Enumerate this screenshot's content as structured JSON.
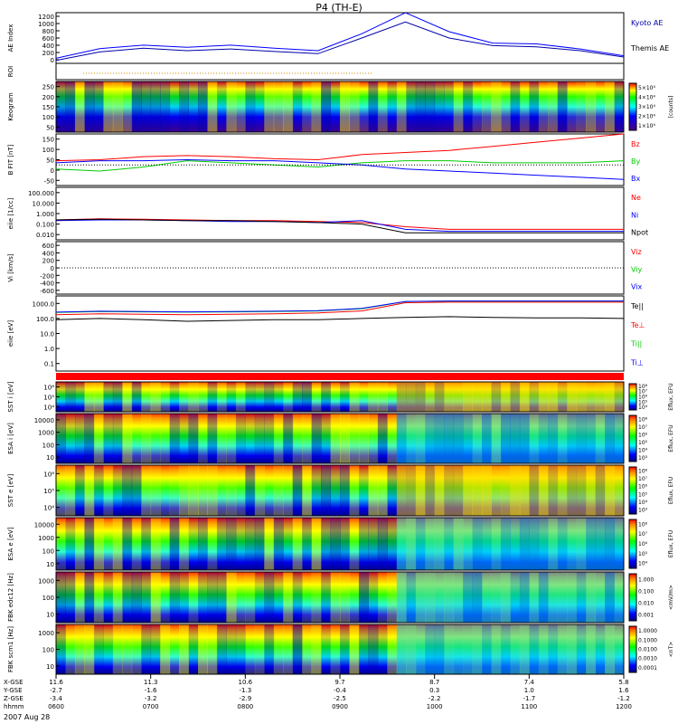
{
  "title": "P4 (TH-E)",
  "date_label": "2007 Aug 28",
  "ephemeris": {
    "row_labels": [
      "X-GSE",
      "Y-GSE",
      "Z-GSE",
      "hhmm"
    ],
    "columns": [
      {
        "x": "11.6",
        "y": "-2.7",
        "z": "-3.4",
        "t": "0600"
      },
      {
        "x": "11.3",
        "y": "-1.6",
        "z": "-3.2",
        "t": "0700"
      },
      {
        "x": "10.6",
        "y": "-1.3",
        "z": "-2.9",
        "t": "0800"
      },
      {
        "x": "9.7",
        "y": "-0.4",
        "z": "-2.5",
        "t": "0900"
      },
      {
        "x": "8.7",
        "y": "0.3",
        "z": "-2.2",
        "t": "1000"
      },
      {
        "x": "7.4",
        "y": "1.0",
        "z": "-1.7",
        "t": "1100"
      },
      {
        "x": "5.8",
        "y": "1.6",
        "z": "-1.2",
        "t": "1200"
      }
    ]
  },
  "colors": {
    "blue": "#0000ff",
    "red": "#ff0000",
    "green": "#00cc00",
    "black": "#000000",
    "navy": "#0000aa",
    "orange": "#cc8800"
  },
  "chart_data": [
    {
      "id": "ae",
      "type": "line",
      "ylabel": "AE Index",
      "ylim": [
        0,
        1200
      ],
      "yticks": [
        "0",
        "200",
        "400",
        "600",
        "800",
        "1000",
        "1200"
      ],
      "x": [
        "0600",
        "0630",
        "0700",
        "0730",
        "0800",
        "0830",
        "0900",
        "0915",
        "0930",
        "1000",
        "1030",
        "1100",
        "1130",
        "1200"
      ],
      "series": [
        {
          "name": "Kyoto AE",
          "values": [
            120,
            350,
            430,
            380,
            430,
            360,
            300,
            700,
            1200,
            750,
            480,
            460,
            340,
            180
          ]
        },
        {
          "name": "Themis AE",
          "values": [
            70,
            270,
            360,
            300,
            340,
            280,
            230,
            600,
            980,
            600,
            420,
            390,
            300,
            150
          ]
        }
      ]
    },
    {
      "id": "roi",
      "type": "line",
      "ylabel": "ROI"
    },
    {
      "id": "keogram",
      "type": "heatmap",
      "ylabel": "Keogram",
      "yticks": [
        "50",
        "100",
        "150",
        "200",
        "250"
      ],
      "colorbar": {
        "label": "[counts]",
        "ticks": [
          "1×10⁴",
          "2×10⁴",
          "3×10⁴",
          "4×10⁴",
          "5×10⁴"
        ]
      }
    },
    {
      "id": "bfield",
      "type": "line",
      "ylabel": "B FIT [nT]",
      "ylim": [
        -100,
        150
      ],
      "yticks": [
        "-50",
        "0",
        "50",
        "100",
        "150"
      ],
      "series": [
        {
          "name": "Bz",
          "color": "#ff0000",
          "values": [
            20,
            25,
            40,
            45,
            40,
            30,
            25,
            50,
            60,
            70,
            90,
            110,
            130,
            150
          ]
        },
        {
          "name": "By",
          "color": "#00cc00",
          "values": [
            -20,
            -30,
            -10,
            20,
            10,
            0,
            -10,
            10,
            20,
            20,
            10,
            10,
            10,
            20
          ]
        },
        {
          "name": "Bx",
          "color": "#0000ff",
          "values": [
            10,
            20,
            20,
            25,
            20,
            20,
            10,
            0,
            -20,
            -30,
            -40,
            -50,
            -60,
            -70
          ]
        }
      ]
    },
    {
      "id": "density",
      "type": "line",
      "ylabel": "eiie [1/cc]",
      "yscale": "log",
      "yticks": [
        "0.010",
        "0.100",
        "1.000",
        "10.000",
        "100.000"
      ],
      "series": [
        {
          "name": "Ne",
          "color": "#ff0000",
          "values": [
            0.6,
            0.8,
            0.7,
            0.6,
            0.5,
            0.5,
            0.4,
            0.3,
            0.1,
            0.05,
            0.05,
            0.05,
            0.05,
            0.05
          ]
        },
        {
          "name": "Ni",
          "color": "#0000ff",
          "values": [
            0.5,
            0.6,
            0.6,
            0.5,
            0.4,
            0.4,
            0.3,
            0.5,
            0.05,
            0.03,
            0.03,
            0.03,
            0.03,
            0.03
          ]
        },
        {
          "name": "Npot",
          "color": "#000000",
          "values": [
            0.6,
            0.7,
            0.6,
            0.5,
            0.5,
            0.4,
            0.3,
            0.2,
            0.02,
            0.02,
            0.02,
            0.02,
            0.02,
            0.02
          ]
        }
      ]
    },
    {
      "id": "velocity",
      "type": "line",
      "ylabel": "Vi [km/s]",
      "ylim": [
        -600,
        600
      ],
      "yticks": [
        "-600",
        "-400",
        "-200",
        "0",
        "200",
        "400",
        "600"
      ],
      "series": [
        {
          "name": "Viz",
          "color": "#ff0000"
        },
        {
          "name": "Viy",
          "color": "#00cc00"
        },
        {
          "name": "Vix",
          "color": "#0000ff"
        }
      ]
    },
    {
      "id": "temperature",
      "type": "line",
      "ylabel": "eiie [eV]",
      "yscale": "log",
      "yticks": [
        "0.1",
        "1.0",
        "10.0",
        "100.0",
        "1000.0"
      ],
      "series": [
        {
          "name": "Te||",
          "color": "#000000",
          "values": [
            40,
            50,
            40,
            30,
            35,
            40,
            40,
            50,
            60,
            70,
            60,
            55,
            55,
            50
          ]
        },
        {
          "name": "Te⊥",
          "color": "#ff0000",
          "values": [
            100,
            120,
            110,
            100,
            110,
            120,
            140,
            200,
            900,
            1000,
            1000,
            1000,
            1000,
            1000
          ]
        },
        {
          "name": "Ti||",
          "color": "#00cc00",
          "values": [
            150,
            180,
            170,
            160,
            170,
            180,
            200,
            300,
            1100,
            1200,
            1200,
            1200,
            1200,
            1200
          ]
        },
        {
          "name": "Ti⊥",
          "color": "#0000ff",
          "values": [
            160,
            190,
            180,
            170,
            180,
            190,
            210,
            320,
            1150,
            1250,
            1250,
            1250,
            1250,
            1250
          ]
        }
      ]
    },
    {
      "id": "sst_i",
      "type": "heatmap",
      "ylabel": "SST i [eV]",
      "yticks": [
        "10⁴",
        "10⁵",
        "10⁶"
      ],
      "colorbar": {
        "label": "Eflux, EFU",
        "ticks": [
          "10⁴",
          "10⁵",
          "10⁶",
          "10⁷",
          "10⁸"
        ]
      }
    },
    {
      "id": "esa_i",
      "type": "heatmap",
      "ylabel": "ESA i [eV]",
      "yticks": [
        "10",
        "100",
        "1000",
        "10000"
      ],
      "colorbar": {
        "label": "Eflux, EFU",
        "ticks": [
          "10³",
          "10⁴",
          "10⁵",
          "10⁶",
          "10⁷",
          "10⁸"
        ]
      }
    },
    {
      "id": "sst_e",
      "type": "heatmap",
      "ylabel": "SST e [eV]",
      "yticks": [
        "10⁴",
        "10⁵",
        "10⁶"
      ],
      "colorbar": {
        "label": "Eflux, EFU",
        "ticks": [
          "10³",
          "10⁴",
          "10⁵",
          "10⁶",
          "10⁷",
          "10⁸"
        ]
      }
    },
    {
      "id": "esa_e",
      "type": "heatmap",
      "ylabel": "ESA e [eV]",
      "yticks": [
        "10",
        "100",
        "1000",
        "10000"
      ],
      "colorbar": {
        "label": "Eflux, EFU",
        "ticks": [
          "10⁴",
          "10⁵",
          "10⁶",
          "10⁷",
          "10⁸"
        ]
      }
    },
    {
      "id": "fbk_e",
      "type": "heatmap",
      "ylabel": "FBK edc12 [Hz]",
      "yticks": [
        "10",
        "100",
        "1000"
      ],
      "colorbar": {
        "label": "<mV/m>",
        "ticks": [
          "0.001",
          "0.010",
          "0.100",
          "1.000"
        ]
      }
    },
    {
      "id": "fbk_b",
      "type": "heatmap",
      "ylabel": "FBK scm1 [Hz]",
      "yticks": [
        "10",
        "100",
        "1000"
      ],
      "colorbar": {
        "label": "<nT>",
        "ticks": [
          "0.0001",
          "0.0010",
          "0.0100",
          "0.1000",
          "1.0000"
        ]
      }
    }
  ]
}
